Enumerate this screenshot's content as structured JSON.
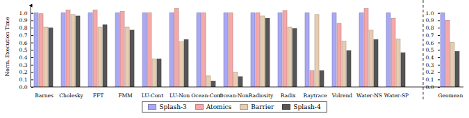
{
  "chart_data": {
    "type": "bar",
    "ylabel": "Norm. Execution Time",
    "categories": [
      "Barnes",
      "Cholesky",
      "FFT",
      "FMM",
      "LU-Cont",
      "LU-Non",
      "Ocean-Cont",
      "Ocean-Non",
      "Radiosity",
      "Radix",
      "Raytrace",
      "Volrend",
      "Water-NS",
      "Water-SP",
      "Geomean"
    ],
    "series": [
      {
        "name": "Splash-3",
        "color": "#a8a8f4",
        "values": [
          1,
          1,
          1,
          1,
          1,
          1,
          1,
          1,
          1,
          1,
          1,
          1,
          1,
          1,
          1
        ]
      },
      {
        "name": "Atomics",
        "color": "#f6a8a8",
        "values": [
          0.99,
          1.04,
          1.04,
          1.02,
          1.0,
          1.06,
          1.0,
          1.0,
          1.0,
          1.03,
          0.22,
          0.86,
          1.06,
          0.93,
          0.9
        ]
      },
      {
        "name": "Barrier",
        "color": "#e6cdb2",
        "values": [
          0.81,
          0.98,
          0.81,
          0.81,
          0.38,
          0.61,
          0.15,
          0.2,
          0.96,
          0.81,
          0.98,
          0.62,
          0.77,
          0.65,
          0.6
        ]
      },
      {
        "name": "Splash-4",
        "color": "#555555",
        "values": [
          0.8,
          0.96,
          0.84,
          0.77,
          0.38,
          0.64,
          0.08,
          0.14,
          0.93,
          0.79,
          0.22,
          0.49,
          0.64,
          0.46,
          0.48
        ]
      }
    ],
    "ylim": [
      0,
      1.1
    ],
    "yticks": [
      0,
      0.1,
      0.2,
      0.3,
      0.4,
      0.5,
      0.6,
      0.7,
      0.8,
      0.9,
      1
    ],
    "grid": false,
    "legend": "bottom"
  }
}
